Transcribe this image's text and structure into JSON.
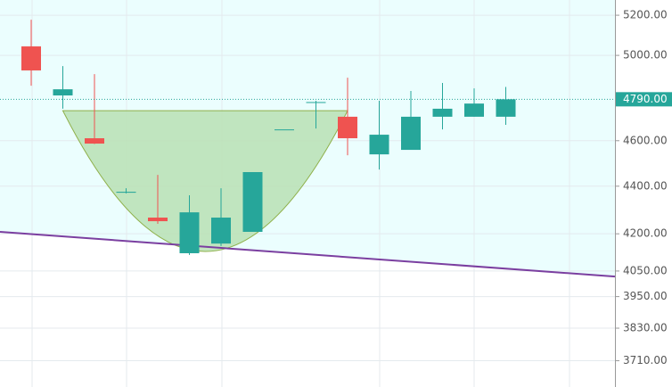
{
  "chart_data": {
    "type": "candlestick",
    "log_scale": true,
    "grid": true,
    "up_color": "#26a69a",
    "down_color": "#ef5350",
    "open": [
      5044,
      4808,
      4611,
      4372,
      4267,
      4121,
      4160,
      4208,
      4651,
      4774,
      4709,
      4539,
      4559,
      4709,
      4709,
      4709
    ],
    "high": [
      5177,
      4948,
      4909,
      4391,
      4449,
      4361,
      4391,
      4461,
      4651,
      4783,
      4892,
      4783,
      4829,
      4867,
      4841,
      4848
    ],
    "low": [
      4854,
      4746,
      4585,
      4369,
      4241,
      4114,
      4150,
      4208,
      4651,
      4655,
      4535,
      4472,
      4559,
      4651,
      4709,
      4672
    ],
    "close": [
      4927,
      4837,
      4587,
      4376,
      4252,
      4289,
      4267,
      4461,
      4651,
      4777,
      4611,
      4627,
      4709,
      4746,
      4770,
      4790
    ],
    "ylim": [
      3616,
      5278
    ],
    "yticks": [
      {
        "value": 5200,
        "label": "5200.00"
      },
      {
        "value": 5000,
        "label": "5000.00"
      },
      {
        "value": 4600,
        "label": "4600.00"
      },
      {
        "value": 4400,
        "label": "4400.00"
      },
      {
        "value": 4200,
        "label": "4200.00"
      },
      {
        "value": 4050,
        "label": "4050.00"
      },
      {
        "value": 3950,
        "label": "3950.00"
      },
      {
        "value": 3830,
        "label": "3830.00"
      },
      {
        "value": 3710,
        "label": "3710.00"
      }
    ],
    "price_line": {
      "value": 4790,
      "label": "4790.00",
      "color": "#26a69a"
    },
    "trendline": {
      "start": 4208,
      "end": 4028,
      "color": "#7b3fa0"
    },
    "cup": {
      "start_index": 1,
      "end_index": 10,
      "rim": 4737,
      "bottom": 4128,
      "color": "#b9e0b4"
    }
  }
}
